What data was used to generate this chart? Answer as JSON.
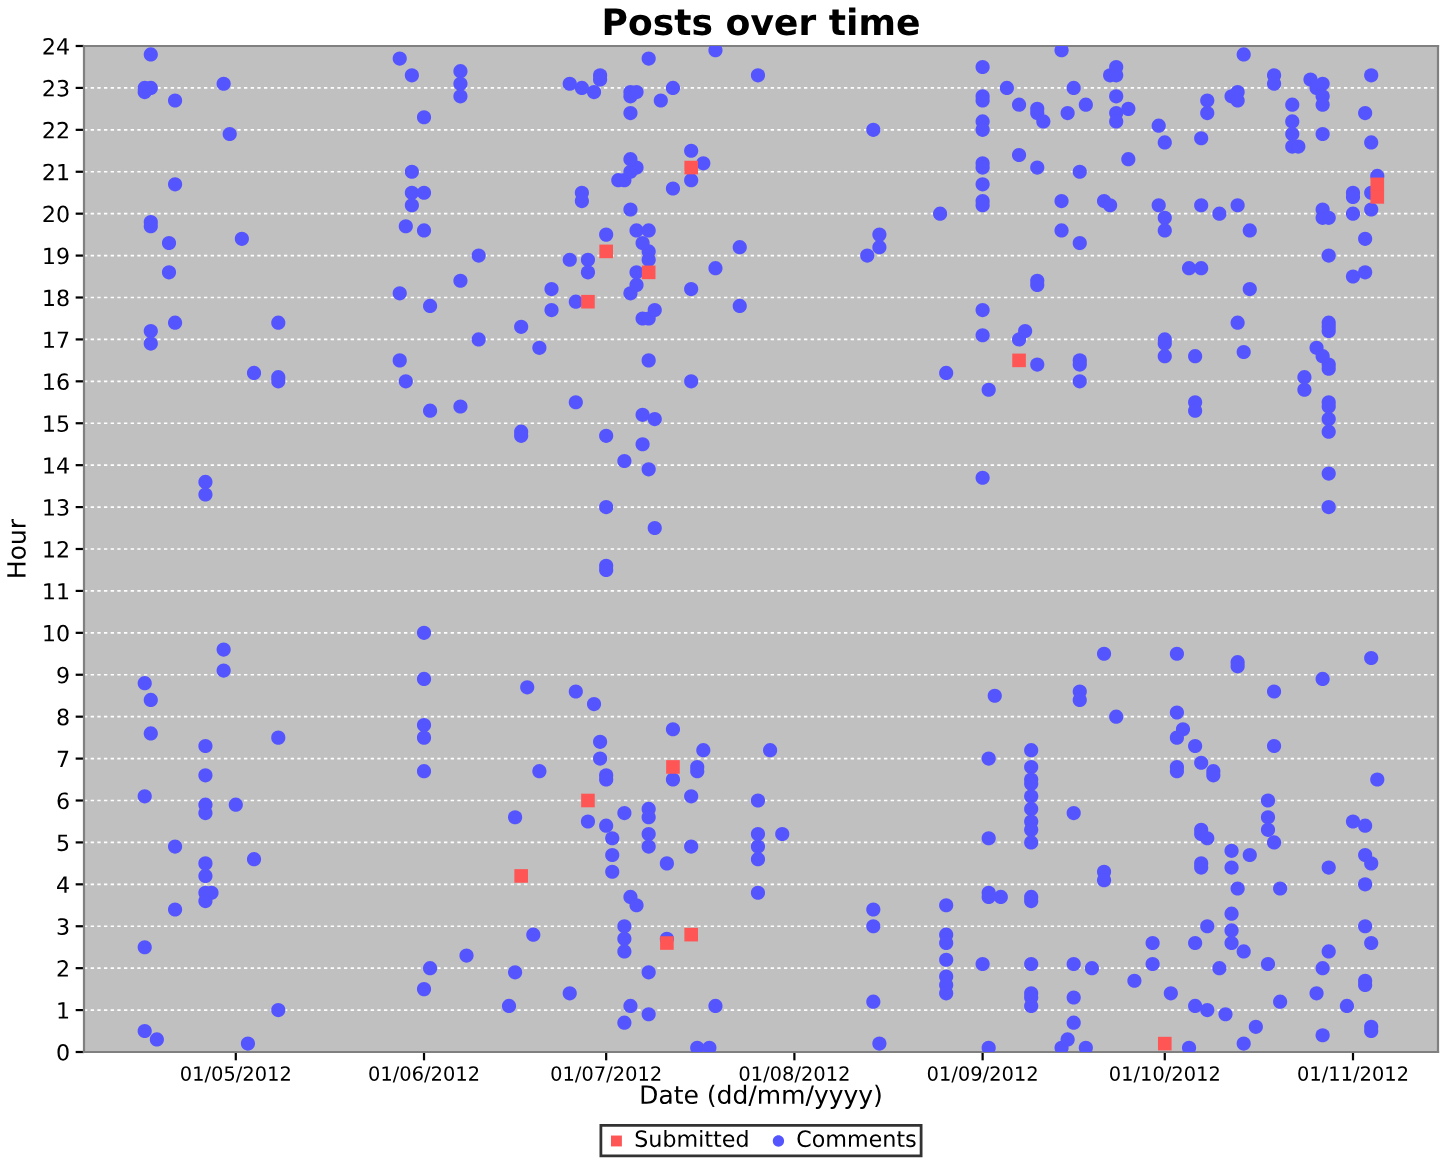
{
  "chart_data": {
    "type": "scatter",
    "title": "Posts over time",
    "xlabel": "Date (dd/mm/yyyy)",
    "ylabel": "Hour",
    "xlim": [
      "2012-04-06",
      "2012-11-15"
    ],
    "xticks": [
      {
        "value": "2012-05-01",
        "label": "01/05/2012"
      },
      {
        "value": "2012-06-01",
        "label": "01/06/2012"
      },
      {
        "value": "2012-07-01",
        "label": "01/07/2012"
      },
      {
        "value": "2012-08-01",
        "label": "01/08/2012"
      },
      {
        "value": "2012-09-01",
        "label": "01/09/2012"
      },
      {
        "value": "2012-10-01",
        "label": "01/10/2012"
      },
      {
        "value": "2012-11-01",
        "label": "01/11/2012"
      }
    ],
    "ylim": [
      0,
      24
    ],
    "yticks": [
      0,
      1,
      2,
      3,
      4,
      5,
      6,
      7,
      8,
      9,
      10,
      11,
      12,
      13,
      14,
      15,
      16,
      17,
      18,
      19,
      20,
      21,
      22,
      23,
      24
    ],
    "grid": "y",
    "legend": "bottom",
    "series": [
      {
        "name": "Submitted",
        "color": "#ff5555",
        "marker": "square",
        "x": [
          "2012-06-28",
          "2012-07-01",
          "2012-07-08",
          "2012-07-15",
          "2012-09-07",
          "2012-11-05",
          "2012-11-05",
          "2012-07-12",
          "2012-06-28",
          "2012-06-17",
          "2012-07-11",
          "2012-07-15",
          "2012-10-01"
        ],
        "values": [
          17.9,
          19.1,
          18.6,
          21.1,
          16.5,
          20.7,
          20.4,
          6.8,
          6.0,
          4.2,
          2.6,
          2.8,
          0.2
        ]
      },
      {
        "name": "Comments",
        "color": "#5555ff",
        "marker": "circle",
        "x": [
          "2012-04-17",
          "2012-05-28",
          "2012-05-30",
          "2012-06-07",
          "2012-06-07",
          "2012-06-07",
          "2012-04-29",
          "2012-04-16",
          "2012-04-17",
          "2012-04-16",
          "2012-04-21",
          "2012-06-01",
          "2012-04-30",
          "2012-04-21",
          "2012-05-30",
          "2012-05-30",
          "2012-06-01",
          "2012-05-30",
          "2012-04-17",
          "2012-04-17",
          "2012-04-20",
          "2012-05-02",
          "2012-05-29",
          "2012-06-01",
          "2012-04-20",
          "2012-06-10",
          "2012-05-28",
          "2012-06-07",
          "2012-06-02",
          "2012-04-21",
          "2012-04-17",
          "2012-04-17",
          "2012-05-08",
          "2012-06-10",
          "2012-06-17",
          "2012-06-20",
          "2012-06-22",
          "2012-06-22",
          "2012-06-26",
          "2012-06-25",
          "2012-06-28",
          "2012-06-28",
          "2012-07-01",
          "2012-05-28",
          "2012-05-29",
          "2012-05-04",
          "2012-05-08",
          "2012-05-08",
          "2012-06-02",
          "2012-06-07",
          "2012-06-17",
          "2012-06-17",
          "2012-06-26",
          "2012-07-01",
          "2012-07-04",
          "2012-07-07",
          "2012-07-08",
          "2012-07-01",
          "2012-07-09",
          "2012-04-26",
          "2012-04-26",
          "2012-07-15",
          "2012-07-08",
          "2012-07-07",
          "2012-07-09",
          "2012-07-07",
          "2012-07-08",
          "2012-07-09",
          "2012-07-05",
          "2012-07-06",
          "2012-07-06",
          "2012-07-15",
          "2012-07-19",
          "2012-07-23",
          "2012-07-23",
          "2012-07-08",
          "2012-07-08",
          "2012-07-07",
          "2012-07-06",
          "2012-07-08",
          "2012-07-05",
          "2012-07-12",
          "2012-07-15",
          "2012-07-15",
          "2012-07-17",
          "2012-07-03",
          "2012-07-04",
          "2012-07-05",
          "2012-07-06",
          "2012-07-05",
          "2012-06-27",
          "2012-06-27",
          "2012-07-05",
          "2012-07-05",
          "2012-07-05",
          "2012-07-06",
          "2012-07-10",
          "2012-07-12",
          "2012-07-08",
          "2012-07-19",
          "2012-06-25",
          "2012-06-27",
          "2012-06-29",
          "2012-06-30",
          "2012-06-30",
          "2012-07-26",
          "2012-08-14",
          "2012-08-13",
          "2012-08-15",
          "2012-08-15",
          "2012-08-25",
          "2012-09-01",
          "2012-09-01",
          "2012-09-02",
          "2012-08-26",
          "2012-09-01",
          "2012-09-01",
          "2012-09-01",
          "2012-09-01",
          "2012-09-01",
          "2012-09-01",
          "2012-09-01",
          "2012-09-01",
          "2012-09-01",
          "2012-09-01",
          "2012-09-01",
          "2012-09-14",
          "2012-09-05",
          "2012-09-07",
          "2012-09-10",
          "2012-09-10",
          "2012-09-11",
          "2012-09-15",
          "2012-09-16",
          "2012-09-18",
          "2012-09-07",
          "2012-09-10",
          "2012-09-17",
          "2012-09-14",
          "2012-09-14",
          "2012-09-17",
          "2012-09-21",
          "2012-09-22",
          "2012-09-10",
          "2012-09-10",
          "2012-09-07",
          "2012-09-08",
          "2012-09-10",
          "2012-09-17",
          "2012-09-17",
          "2012-09-17",
          "2012-09-22",
          "2012-09-23",
          "2012-09-23",
          "2012-09-23",
          "2012-09-23",
          "2012-09-23",
          "2012-09-25",
          "2012-09-25",
          "2012-09-30",
          "2012-10-01",
          "2012-09-30",
          "2012-10-01",
          "2012-10-01",
          "2012-10-01",
          "2012-10-01",
          "2012-10-01",
          "2012-10-06",
          "2012-10-06",
          "2012-10-06",
          "2012-10-05",
          "2012-10-07",
          "2012-10-07",
          "2012-10-10",
          "2012-10-13",
          "2012-10-15",
          "2012-10-15",
          "2012-10-13",
          "2012-10-14",
          "2012-10-07",
          "2012-10-08",
          "2012-10-08",
          "2012-10-12",
          "2012-10-13",
          "2012-10-13",
          "2012-10-14",
          "2012-10-19",
          "2012-10-19",
          "2012-10-22",
          "2012-10-22",
          "2012-10-22",
          "2012-10-22",
          "2012-10-23",
          "2012-10-25",
          "2012-10-26",
          "2012-10-27",
          "2012-10-27",
          "2012-10-27",
          "2012-10-27",
          "2012-10-27",
          "2012-10-27",
          "2012-10-28",
          "2012-10-28",
          "2012-10-28",
          "2012-10-28",
          "2012-10-28",
          "2012-10-26",
          "2012-10-27",
          "2012-10-28",
          "2012-10-28",
          "2012-10-24",
          "2012-10-24",
          "2012-10-28",
          "2012-10-28",
          "2012-10-28",
          "2012-10-28",
          "2012-10-28",
          "2012-10-28",
          "2012-11-04",
          "2012-11-03",
          "2012-11-04",
          "2012-11-05",
          "2012-11-04",
          "2012-11-04",
          "2012-11-01",
          "2012-11-01",
          "2012-11-01",
          "2012-11-03",
          "2012-11-01",
          "2012-11-03",
          "2012-07-01",
          "2012-07-01",
          "2012-06-01",
          "2012-04-29",
          "2012-04-29",
          "2012-06-01",
          "2012-04-16",
          "2012-04-17",
          "2012-04-17",
          "2012-06-01",
          "2012-06-01",
          "2012-06-01",
          "2012-06-18",
          "2012-06-26",
          "2012-06-29",
          "2012-04-26",
          "2012-04-26",
          "2012-05-08",
          "2012-04-16",
          "2012-07-12",
          "2012-07-17",
          "2012-07-12",
          "2012-07-16",
          "2012-07-16",
          "2012-06-30",
          "2012-06-30",
          "2012-07-01",
          "2012-07-01",
          "2012-06-20",
          "2012-06-28",
          "2012-07-01",
          "2012-07-04",
          "2012-07-08",
          "2012-07-08",
          "2012-07-08",
          "2012-07-08",
          "2012-07-15",
          "2012-07-15",
          "2012-07-11",
          "2012-07-26",
          "2012-07-26",
          "2012-07-26",
          "2012-07-26",
          "2012-07-26",
          "2012-04-26",
          "2012-04-26",
          "2012-05-01",
          "2012-04-21",
          "2012-05-04",
          "2012-04-26",
          "2012-04-26",
          "2012-04-26",
          "2012-04-27",
          "2012-04-26",
          "2012-04-21",
          "2012-04-16",
          "2012-06-16",
          "2012-07-02",
          "2012-07-02",
          "2012-07-02",
          "2012-07-05",
          "2012-07-06",
          "2012-07-04",
          "2012-07-04",
          "2012-07-04",
          "2012-07-11",
          "2012-06-19",
          "2012-06-08",
          "2012-06-02",
          "2012-06-01",
          "2012-06-16",
          "2012-07-08",
          "2012-06-15",
          "2012-06-25",
          "2012-07-05",
          "2012-07-04",
          "2012-07-08",
          "2012-07-19",
          "2012-05-08",
          "2012-04-16",
          "2012-04-18",
          "2012-05-03",
          "2012-07-16",
          "2012-07-18",
          "2012-09-21",
          "2012-10-03",
          "2012-10-13",
          "2012-10-13",
          "2012-11-04",
          "2012-10-27",
          "2012-10-19",
          "2012-09-03",
          "2012-09-17",
          "2012-09-17",
          "2012-09-23",
          "2012-10-03",
          "2012-10-04",
          "2012-10-03",
          "2012-10-06",
          "2012-10-19",
          "2012-07-28",
          "2012-09-02",
          "2012-09-09",
          "2012-09-09",
          "2012-09-09",
          "2012-09-09",
          "2012-09-09",
          "2012-09-09",
          "2012-09-09",
          "2012-09-09",
          "2012-09-09",
          "2012-10-03",
          "2012-10-03",
          "2012-10-07",
          "2012-10-09",
          "2012-10-09",
          "2012-11-05",
          "2012-07-30",
          "2012-09-16",
          "2012-09-02",
          "2012-10-18",
          "2012-10-18",
          "2012-10-18",
          "2012-10-19",
          "2012-10-07",
          "2012-10-07",
          "2012-10-08",
          "2012-11-01",
          "2012-11-03",
          "2012-10-12",
          "2012-10-15",
          "2012-10-12",
          "2012-10-07",
          "2012-10-07",
          "2012-11-03",
          "2012-11-04",
          "2012-10-28",
          "2012-09-21",
          "2012-09-21",
          "2012-09-02",
          "2012-09-02",
          "2012-09-04",
          "2012-09-09",
          "2012-09-09",
          "2012-10-13",
          "2012-10-20",
          "2012-11-03",
          "2012-08-14",
          "2012-08-14",
          "2012-08-26",
          "2012-08-26",
          "2012-08-26",
          "2012-08-26",
          "2012-08-26",
          "2012-08-26",
          "2012-08-26",
          "2012-10-12",
          "2012-10-12",
          "2012-10-12",
          "2012-10-14",
          "2012-10-08",
          "2012-10-06",
          "2012-09-29",
          "2012-09-29",
          "2012-09-26",
          "2012-11-03",
          "2012-11-04",
          "2012-10-28",
          "2012-10-27",
          "2012-10-18",
          "2012-10-10",
          "2012-09-01",
          "2012-09-09",
          "2012-09-16",
          "2012-09-19",
          "2012-08-14",
          "2012-09-09",
          "2012-09-09",
          "2012-09-09",
          "2012-09-16",
          "2012-10-02",
          "2012-10-06",
          "2012-10-08",
          "2012-10-11",
          "2012-10-20",
          "2012-10-26",
          "2012-10-31",
          "2012-11-03",
          "2012-11-03",
          "2012-09-16",
          "2012-10-16",
          "2012-10-27",
          "2012-11-04",
          "2012-11-04",
          "2012-08-15",
          "2012-09-02",
          "2012-09-14",
          "2012-09-15",
          "2012-09-18",
          "2012-10-05",
          "2012-10-14"
        ],
        "values": [
          23.8,
          23.7,
          23.3,
          23.4,
          23.1,
          22.8,
          23.1,
          23.0,
          23.0,
          22.9,
          22.7,
          22.3,
          21.9,
          20.7,
          21.0,
          20.5,
          20.5,
          20.2,
          19.8,
          19.7,
          19.3,
          19.4,
          19.7,
          19.6,
          18.6,
          19.0,
          18.1,
          18.4,
          17.8,
          17.4,
          17.2,
          16.9,
          17.4,
          17.0,
          17.3,
          16.8,
          18.2,
          17.7,
          17.9,
          18.9,
          18.9,
          18.6,
          19.5,
          16.5,
          16.0,
          16.2,
          16.1,
          16.0,
          15.3,
          15.4,
          14.8,
          14.7,
          15.5,
          14.7,
          14.1,
          14.5,
          13.9,
          13.0,
          12.5,
          13.6,
          13.3,
          16.0,
          16.5,
          15.2,
          15.1,
          17.5,
          17.5,
          17.7,
          18.1,
          18.3,
          18.6,
          18.2,
          18.7,
          17.8,
          19.2,
          18.9,
          19.1,
          19.3,
          19.6,
          19.6,
          20.1,
          20.6,
          20.8,
          21.5,
          21.2,
          20.8,
          20.8,
          21.0,
          21.1,
          21.3,
          20.5,
          20.3,
          22.4,
          22.8,
          22.9,
          22.9,
          22.7,
          23.0,
          23.7,
          23.9,
          23.1,
          23.0,
          22.9,
          23.3,
          23.2,
          23.3,
          22.0,
          19.0,
          19.2,
          19.5,
          20.0,
          17.7,
          17.1,
          15.8,
          16.2,
          13.7,
          23.5,
          22.8,
          22.7,
          22.2,
          22.0,
          21.2,
          21.1,
          20.7,
          20.3,
          20.2,
          23.9,
          23.0,
          22.6,
          22.5,
          22.4,
          22.2,
          22.4,
          23.0,
          22.6,
          21.4,
          21.1,
          21.0,
          20.3,
          19.6,
          19.3,
          20.3,
          20.2,
          18.4,
          18.3,
          17.0,
          17.2,
          16.4,
          16.5,
          16.4,
          16.0,
          23.3,
          23.5,
          23.3,
          22.8,
          22.4,
          22.2,
          22.5,
          21.3,
          22.1,
          21.7,
          20.2,
          19.9,
          19.6,
          17.0,
          16.9,
          16.6,
          16.6,
          15.5,
          15.3,
          18.7,
          18.7,
          20.2,
          20.0,
          20.2,
          19.6,
          18.2,
          17.4,
          16.7,
          21.8,
          22.4,
          22.7,
          22.8,
          22.9,
          22.7,
          23.8,
          23.3,
          23.1,
          22.6,
          22.2,
          21.9,
          21.6,
          21.6,
          23.2,
          23.0,
          23.1,
          22.8,
          22.6,
          21.9,
          20.1,
          19.9,
          19.9,
          19.0,
          17.4,
          17.3,
          17.2,
          16.8,
          16.6,
          16.4,
          16.3,
          16.1,
          15.8,
          15.5,
          15.4,
          15.1,
          14.8,
          13.8,
          13.0,
          23.3,
          22.4,
          21.7,
          20.9,
          20.5,
          20.1,
          20.5,
          20.4,
          20.0,
          19.4,
          18.5,
          18.6,
          11.6,
          11.5,
          10.0,
          9.6,
          9.1,
          8.9,
          8.8,
          8.4,
          7.6,
          7.8,
          7.5,
          6.7,
          8.7,
          8.6,
          8.3,
          7.3,
          6.6,
          7.5,
          6.1,
          7.7,
          7.2,
          6.5,
          6.8,
          6.7,
          7.4,
          7.0,
          6.6,
          6.5,
          6.7,
          5.5,
          5.4,
          5.7,
          5.8,
          5.6,
          5.2,
          4.9,
          6.1,
          4.9,
          4.5,
          6.0,
          5.2,
          4.9,
          4.6,
          3.8,
          5.9,
          5.7,
          5.9,
          4.9,
          4.6,
          4.5,
          4.2,
          3.8,
          3.8,
          3.6,
          3.4,
          2.5,
          5.6,
          5.1,
          4.7,
          4.3,
          3.7,
          3.5,
          3.0,
          2.7,
          2.4,
          2.7,
          2.8,
          2.3,
          2.0,
          1.5,
          1.9,
          1.9,
          1.1,
          1.4,
          1.1,
          0.7,
          0.9,
          1.1,
          1.0,
          0.5,
          0.3,
          0.2,
          0.1,
          0.1,
          9.5,
          9.5,
          9.3,
          9.2,
          9.4,
          8.9,
          8.6,
          8.5,
          8.6,
          8.4,
          8.0,
          8.1,
          7.7,
          7.5,
          7.3,
          7.3,
          7.2,
          7.0,
          7.2,
          6.8,
          6.5,
          6.4,
          6.1,
          5.8,
          5.5,
          5.3,
          5.0,
          6.8,
          6.7,
          6.9,
          6.7,
          6.6,
          6.5,
          5.2,
          5.7,
          5.1,
          6.0,
          5.6,
          5.3,
          5.0,
          5.3,
          5.2,
          5.1,
          5.5,
          5.4,
          4.8,
          4.7,
          4.4,
          4.5,
          4.4,
          4.7,
          4.5,
          4.4,
          4.3,
          4.1,
          3.8,
          3.7,
          3.7,
          3.7,
          3.6,
          3.9,
          3.9,
          4.0,
          3.4,
          3.0,
          3.5,
          2.8,
          2.6,
          2.2,
          1.8,
          1.6,
          1.4,
          3.3,
          2.9,
          2.6,
          2.4,
          3.0,
          2.6,
          2.6,
          2.1,
          1.7,
          3.0,
          2.6,
          2.4,
          2.0,
          2.1,
          2.0,
          2.1,
          2.1,
          2.1,
          2.0,
          1.2,
          1.4,
          1.3,
          1.1,
          1.3,
          1.4,
          1.1,
          1.0,
          0.9,
          1.2,
          1.4,
          1.1,
          1.7,
          1.6,
          0.7,
          0.6,
          0.4,
          0.6,
          0.5,
          0.2,
          0.1,
          0.1,
          0.3,
          0.1,
          0.1,
          0.2
        ]
      }
    ]
  }
}
